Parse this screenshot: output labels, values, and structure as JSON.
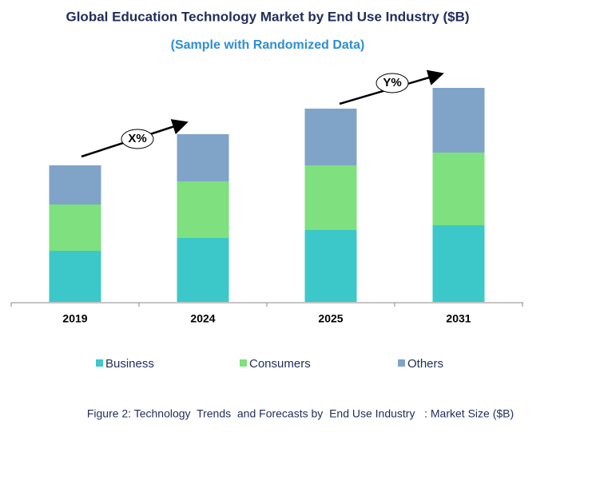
{
  "chart_data": {
    "type": "stacked_bar",
    "title": "Global Education Technology Market by End Use Industry ($B)",
    "subtitle": "(Sample with Randomized Data)",
    "categories": [
      "2019",
      "2024",
      "2025",
      "2031"
    ],
    "series": [
      {
        "name": "Business",
        "color": "#3cc8c8",
        "values": [
          64,
          80,
          90,
          96
        ]
      },
      {
        "name": "Consumers",
        "color": "#7ee07e",
        "values": [
          58,
          71,
          81,
          91
        ]
      },
      {
        "name": "Others",
        "color": "#7fa4c8",
        "values": [
          49,
          59,
          71,
          81
        ]
      }
    ],
    "ylim": [
      0,
      300
    ],
    "annotations": [
      "X%",
      "Y%"
    ],
    "caption": "Figure 2: Technology  Trends  and Forecasts by  End Use Industry   : Market Size ($B)"
  }
}
